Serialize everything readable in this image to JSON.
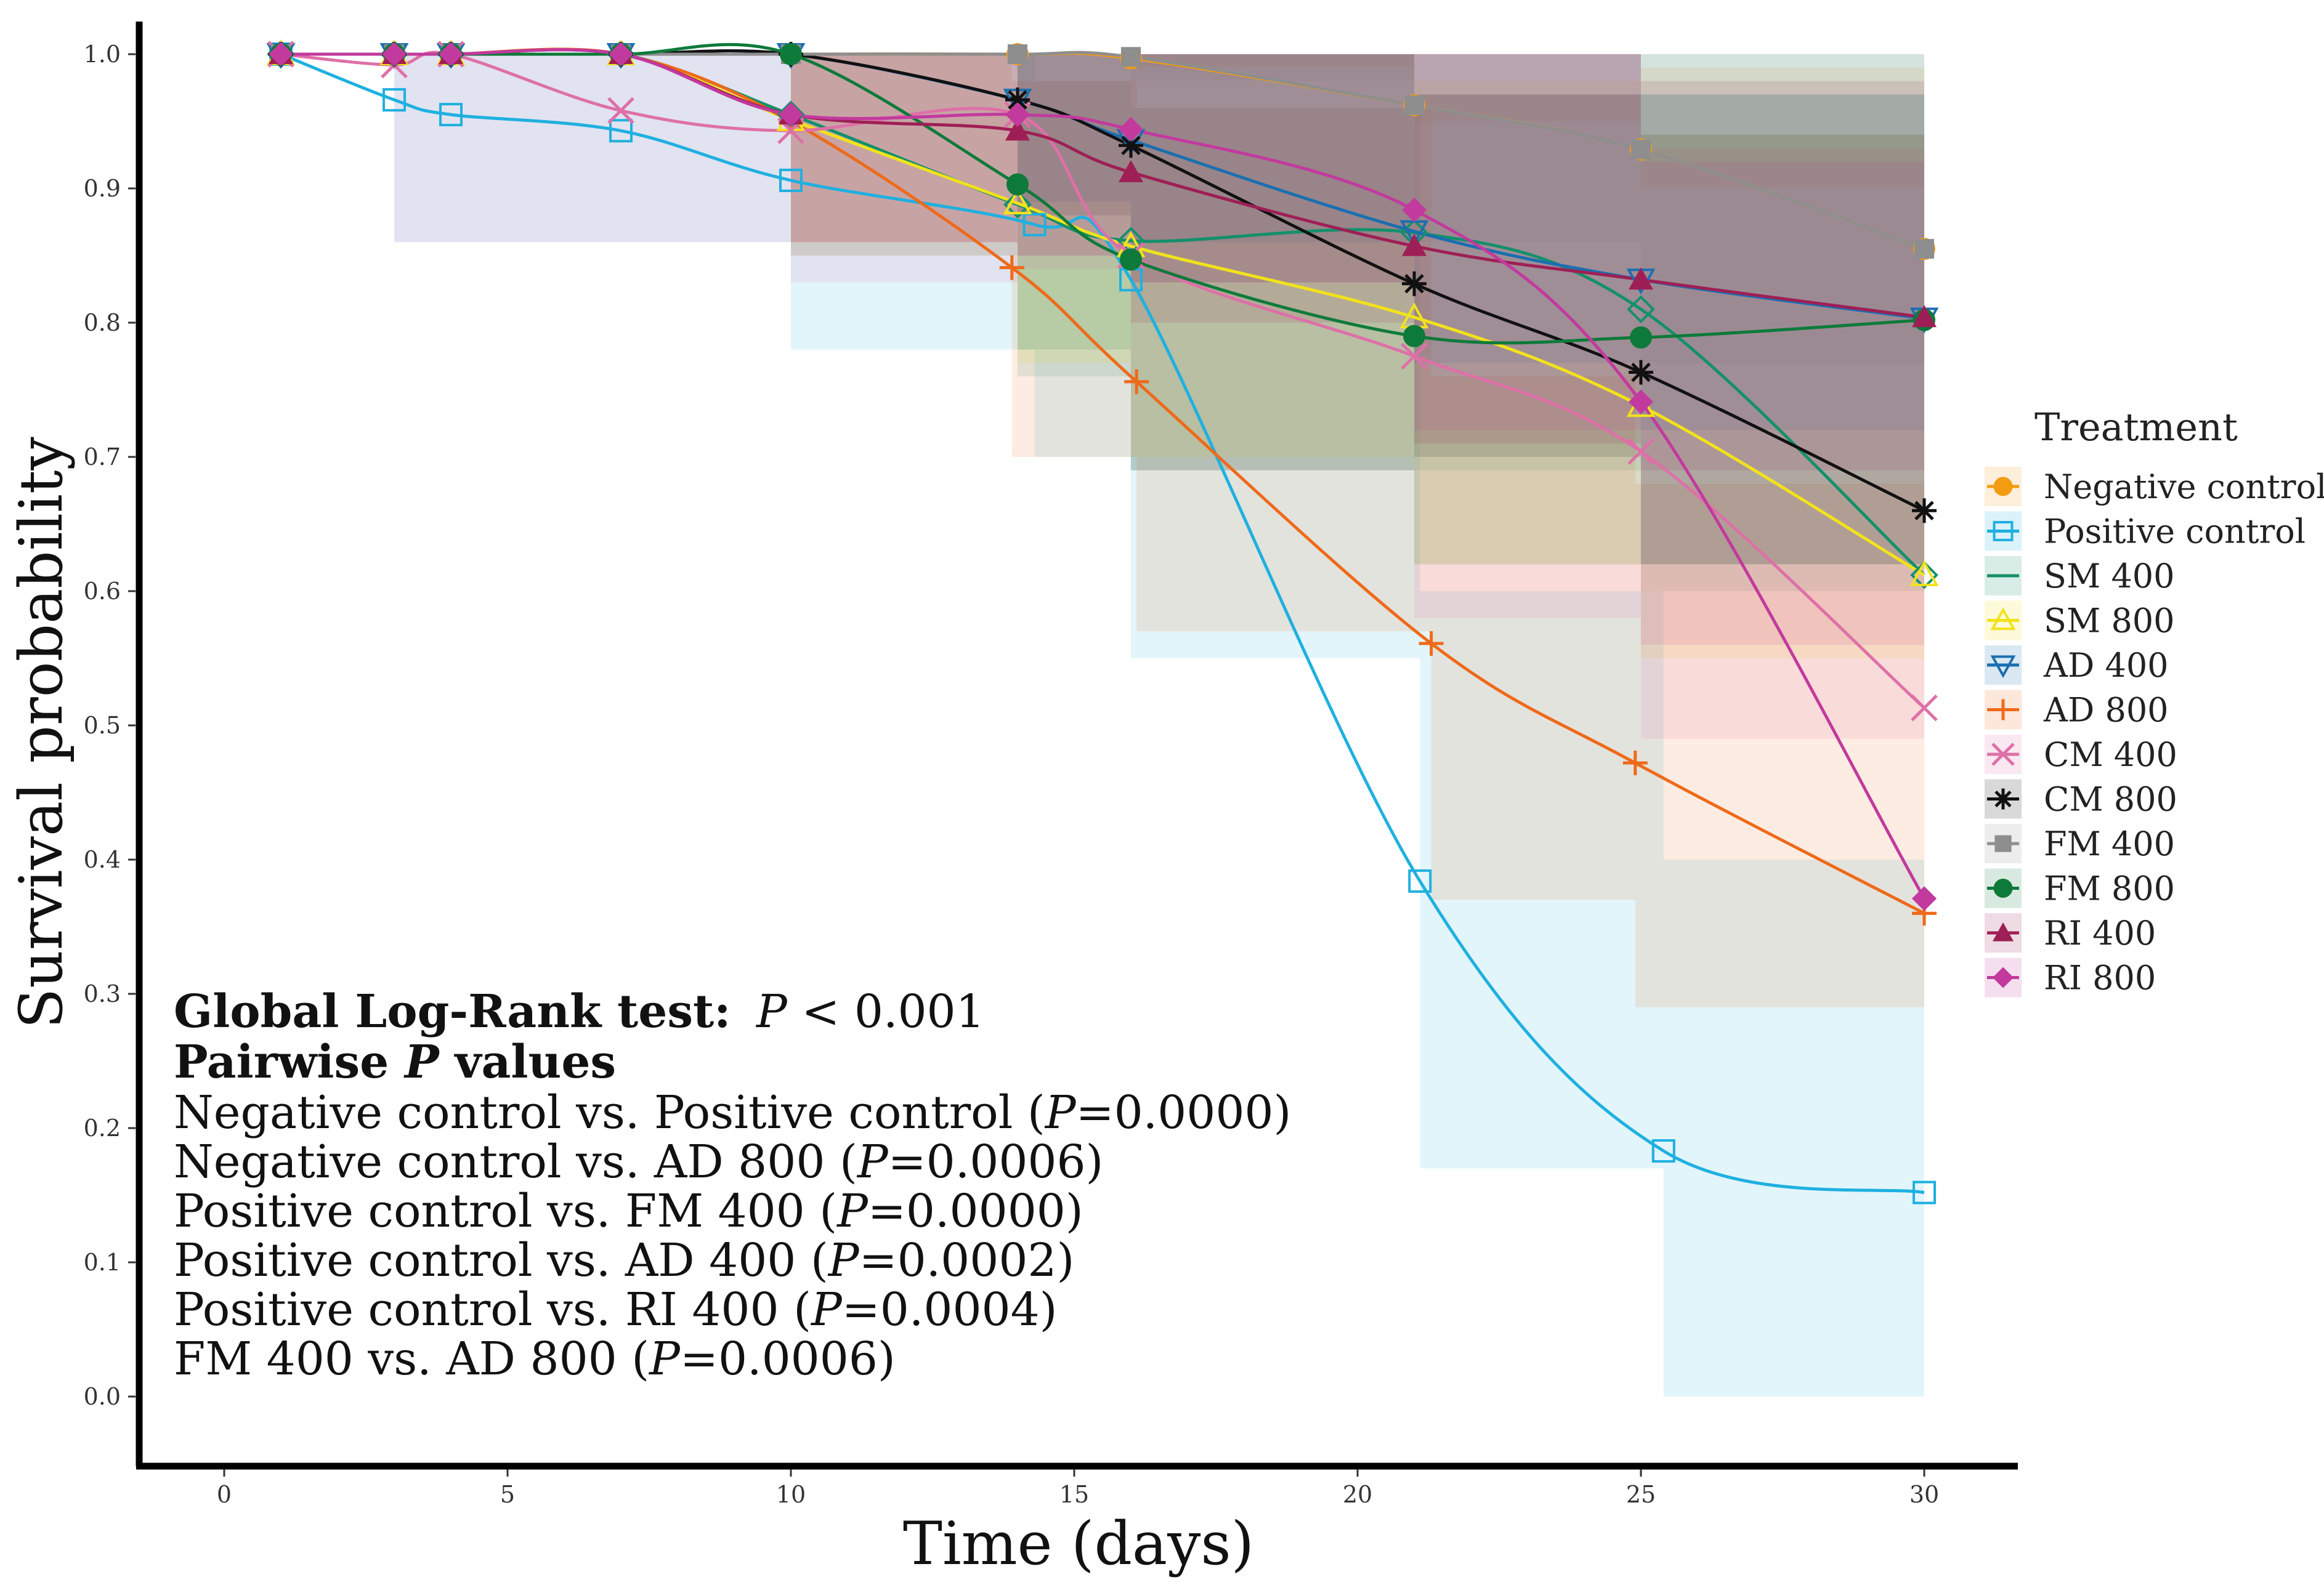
{
  "chart_data": {
    "type": "line",
    "title": "",
    "xlabel": "Time (days)",
    "ylabel": "Survival probability",
    "xlim": [
      -1.5,
      31.5
    ],
    "ylim": [
      -0.05,
      1.025
    ],
    "x_ticks": [
      "0",
      "5",
      "10",
      "15",
      "20",
      "25",
      "30"
    ],
    "y_ticks": [
      "0.0",
      "0.1",
      "0.2",
      "0.3",
      "0.4",
      "0.5",
      "0.6",
      "0.7",
      "0.8",
      "0.9",
      "1.0"
    ],
    "grid": false,
    "legend_title": "Treatment",
    "legend_position": "right",
    "series": [
      {
        "name": "Negative control",
        "color": "#F39C12",
        "marker": "circle",
        "x": [
          1,
          3,
          4,
          7,
          10,
          14,
          16,
          21,
          25,
          30
        ],
        "y": [
          1.0,
          1.0,
          1.0,
          1.0,
          1.0,
          1.0,
          0.997,
          0.962,
          0.929,
          0.855
        ],
        "ci_low": [
          1.0,
          1.0,
          1.0,
          1.0,
          1.0,
          1.0,
          0.99,
          0.95,
          0.9,
          0.82
        ],
        "ci_high": [
          1.0,
          1.0,
          1.0,
          1.0,
          1.0,
          1.0,
          1.0,
          1.0,
          0.99,
          0.96
        ]
      },
      {
        "name": "Positive control",
        "color": "#1FB0E0",
        "marker": "square-open",
        "x": [
          1,
          3,
          4,
          7,
          10,
          14.3,
          16,
          21.1,
          25.4,
          30
        ],
        "y": [
          1.0,
          0.966,
          0.955,
          0.943,
          0.906,
          0.873,
          0.832,
          0.384,
          0.183,
          0.152
        ],
        "ci_low": [
          1.0,
          0.86,
          0.86,
          0.86,
          0.78,
          0.7,
          0.55,
          0.17,
          0.0,
          0.0
        ],
        "ci_high": [
          1.0,
          1.0,
          1.0,
          1.0,
          1.0,
          0.98,
          0.96,
          0.6,
          0.4,
          0.3
        ]
      },
      {
        "name": "SM 400",
        "color": "#14906B",
        "marker": "diamond-open",
        "x": [
          1,
          3,
          4,
          7,
          10,
          14,
          16,
          21,
          25,
          30
        ],
        "y": [
          1.0,
          1.0,
          1.0,
          1.0,
          0.955,
          0.888,
          0.861,
          0.867,
          0.81,
          0.612
        ],
        "ci_low": [
          1.0,
          1.0,
          1.0,
          1.0,
          0.85,
          0.76,
          0.69,
          0.69,
          0.6,
          0.4
        ],
        "ci_high": [
          1.0,
          1.0,
          1.0,
          1.0,
          1.0,
          1.0,
          1.0,
          1.0,
          1.0,
          0.85
        ]
      },
      {
        "name": "SM 800",
        "color": "#F2E21B",
        "marker": "triangle-open",
        "x": [
          1,
          3,
          4,
          7,
          10,
          14,
          16,
          21,
          25,
          30
        ],
        "y": [
          1.0,
          1.0,
          1.0,
          1.0,
          0.951,
          0.889,
          0.857,
          0.804,
          0.738,
          0.612
        ],
        "ci_low": [
          1.0,
          1.0,
          1.0,
          1.0,
          0.86,
          0.77,
          0.7,
          0.62,
          0.55,
          0.4
        ],
        "ci_high": [
          1.0,
          1.0,
          1.0,
          1.0,
          1.0,
          1.0,
          1.0,
          0.98,
          0.94,
          0.85
        ]
      },
      {
        "name": "AD 400",
        "color": "#1A6FB0",
        "marker": "triangle-down-open",
        "x": [
          1,
          3,
          4,
          7,
          10,
          14,
          16,
          21,
          25,
          30
        ],
        "y": [
          1.0,
          1.0,
          1.0,
          1.0,
          1.0,
          0.966,
          0.936,
          0.868,
          0.832,
          0.803
        ],
        "ci_low": [
          1.0,
          1.0,
          1.0,
          1.0,
          1.0,
          0.89,
          0.86,
          0.77,
          0.72,
          0.66
        ],
        "ci_high": [
          1.0,
          1.0,
          1.0,
          1.0,
          1.0,
          1.0,
          1.0,
          1.0,
          0.97,
          0.96
        ]
      },
      {
        "name": "AD 800",
        "color": "#EE6A1A",
        "marker": "plus",
        "x": [
          1,
          3,
          4,
          7,
          10,
          13.9,
          16.1,
          21.3,
          24.9,
          30
        ],
        "y": [
          1.0,
          1.0,
          1.0,
          1.0,
          0.95,
          0.841,
          0.756,
          0.561,
          0.472,
          0.36
        ],
        "ci_low": [
          1.0,
          1.0,
          1.0,
          1.0,
          0.85,
          0.7,
          0.57,
          0.37,
          0.29,
          0.18
        ],
        "ci_high": [
          1.0,
          1.0,
          1.0,
          1.0,
          1.0,
          0.98,
          0.96,
          0.76,
          0.68,
          0.57
        ]
      },
      {
        "name": "CM 400",
        "color": "#DE70A8",
        "marker": "x",
        "x": [
          1,
          3,
          4,
          7,
          10,
          14,
          16,
          21,
          25,
          30
        ],
        "y": [
          1.0,
          0.992,
          1.0,
          0.958,
          0.943,
          0.955,
          0.85,
          0.775,
          0.704,
          0.513
        ],
        "ci_low": [
          1.0,
          0.86,
          0.86,
          0.86,
          0.83,
          0.84,
          0.69,
          0.58,
          0.49,
          0.28
        ],
        "ci_high": [
          1.0,
          1.0,
          1.0,
          1.0,
          1.0,
          1.0,
          1.0,
          0.97,
          0.93,
          0.72
        ]
      },
      {
        "name": "CM 800",
        "color": "#111111",
        "marker": "asterisk",
        "x": [
          1,
          3,
          4,
          7,
          10,
          14,
          16,
          21,
          25,
          30
        ],
        "y": [
          1.0,
          1.0,
          1.0,
          1.0,
          1.0,
          0.966,
          0.932,
          0.829,
          0.763,
          0.66
        ],
        "ci_low": [
          1.0,
          1.0,
          1.0,
          1.0,
          1.0,
          0.88,
          0.83,
          0.7,
          0.62,
          0.45
        ],
        "ci_high": [
          1.0,
          1.0,
          1.0,
          1.0,
          1.0,
          1.0,
          1.0,
          0.97,
          0.94,
          0.86
        ]
      },
      {
        "name": "FM 400",
        "color": "#8E8E8E",
        "marker": "square",
        "x": [
          1,
          3,
          4,
          7,
          10,
          14,
          16,
          21,
          25,
          30
        ],
        "y": [
          1.0,
          1.0,
          1.0,
          1.0,
          1.0,
          1.0,
          0.998,
          0.962,
          0.929,
          0.855
        ],
        "ci_low": [
          1.0,
          1.0,
          1.0,
          1.0,
          1.0,
          1.0,
          0.98,
          0.86,
          0.77,
          0.63
        ],
        "ci_high": [
          1.0,
          1.0,
          1.0,
          1.0,
          1.0,
          1.0,
          1.0,
          1.0,
          1.0,
          1.0
        ]
      },
      {
        "name": "FM 800",
        "color": "#0E7A3A",
        "marker": "circle",
        "x": [
          1,
          3,
          4,
          7,
          10,
          14,
          16,
          21,
          25,
          30
        ],
        "y": [
          1.0,
          1.0,
          1.0,
          1.0,
          1.0,
          0.903,
          0.847,
          0.79,
          0.789,
          0.802
        ],
        "ci_low": [
          1.0,
          1.0,
          1.0,
          1.0,
          1.0,
          0.78,
          0.69,
          0.62,
          0.62,
          0.62
        ],
        "ci_high": [
          1.0,
          1.0,
          1.0,
          1.0,
          1.0,
          1.0,
          1.0,
          0.97,
          0.97,
          0.97
        ]
      },
      {
        "name": "RI 400",
        "color": "#9E1F55",
        "marker": "triangle",
        "x": [
          1,
          3,
          4,
          7,
          10,
          14,
          16,
          21,
          25,
          30
        ],
        "y": [
          1.0,
          1.0,
          1.0,
          1.0,
          0.955,
          0.943,
          0.912,
          0.857,
          0.832,
          0.804
        ],
        "ci_low": [
          1.0,
          1.0,
          1.0,
          1.0,
          0.86,
          0.85,
          0.8,
          0.71,
          0.69,
          0.64
        ],
        "ci_high": [
          1.0,
          1.0,
          1.0,
          1.0,
          1.0,
          1.0,
          1.0,
          1.0,
          0.98,
          0.96
        ]
      },
      {
        "name": "RI 800",
        "color": "#C23A9E",
        "marker": "diamond",
        "x": [
          1,
          3,
          4,
          7,
          10,
          14,
          16,
          21,
          25,
          30
        ],
        "y": [
          1.0,
          1.0,
          1.0,
          1.0,
          0.955,
          0.955,
          0.944,
          0.884,
          0.741,
          0.371
        ],
        "ci_low": [
          1.0,
          1.0,
          1.0,
          1.0,
          0.86,
          0.85,
          0.83,
          0.72,
          0.56,
          0.15
        ],
        "ci_high": [
          1.0,
          1.0,
          1.0,
          1.0,
          1.0,
          1.0,
          1.0,
          1.0,
          0.92,
          0.6
        ]
      }
    ]
  },
  "annotation": {
    "global_label": "Global Log-Rank test:",
    "global_p_symbol": "P",
    "global_p_value": " < 0.001",
    "pairwise_prefix": "Pairwise ",
    "pairwise_p_symbol": "P",
    "pairwise_suffix": " values",
    "comparisons": [
      {
        "label": "Negative control vs. Positive control (",
        "p_symbol": "P",
        "value": "=0.0000)"
      },
      {
        "label": "Negative control vs. AD 800 (",
        "p_symbol": "P",
        "value": "=0.0006)"
      },
      {
        "label": "Positive control vs. FM 400 (",
        "p_symbol": "P",
        "value": "=0.0000)"
      },
      {
        "label": "Positive control vs. AD 400 (",
        "p_symbol": "P",
        "value": "=0.0002)"
      },
      {
        "label": "Positive control vs. RI 400 (",
        "p_symbol": "P",
        "value": "=0.0004)"
      },
      {
        "label": "FM 400 vs. AD 800 (",
        "p_symbol": "P",
        "value": "=0.0006)"
      }
    ]
  }
}
